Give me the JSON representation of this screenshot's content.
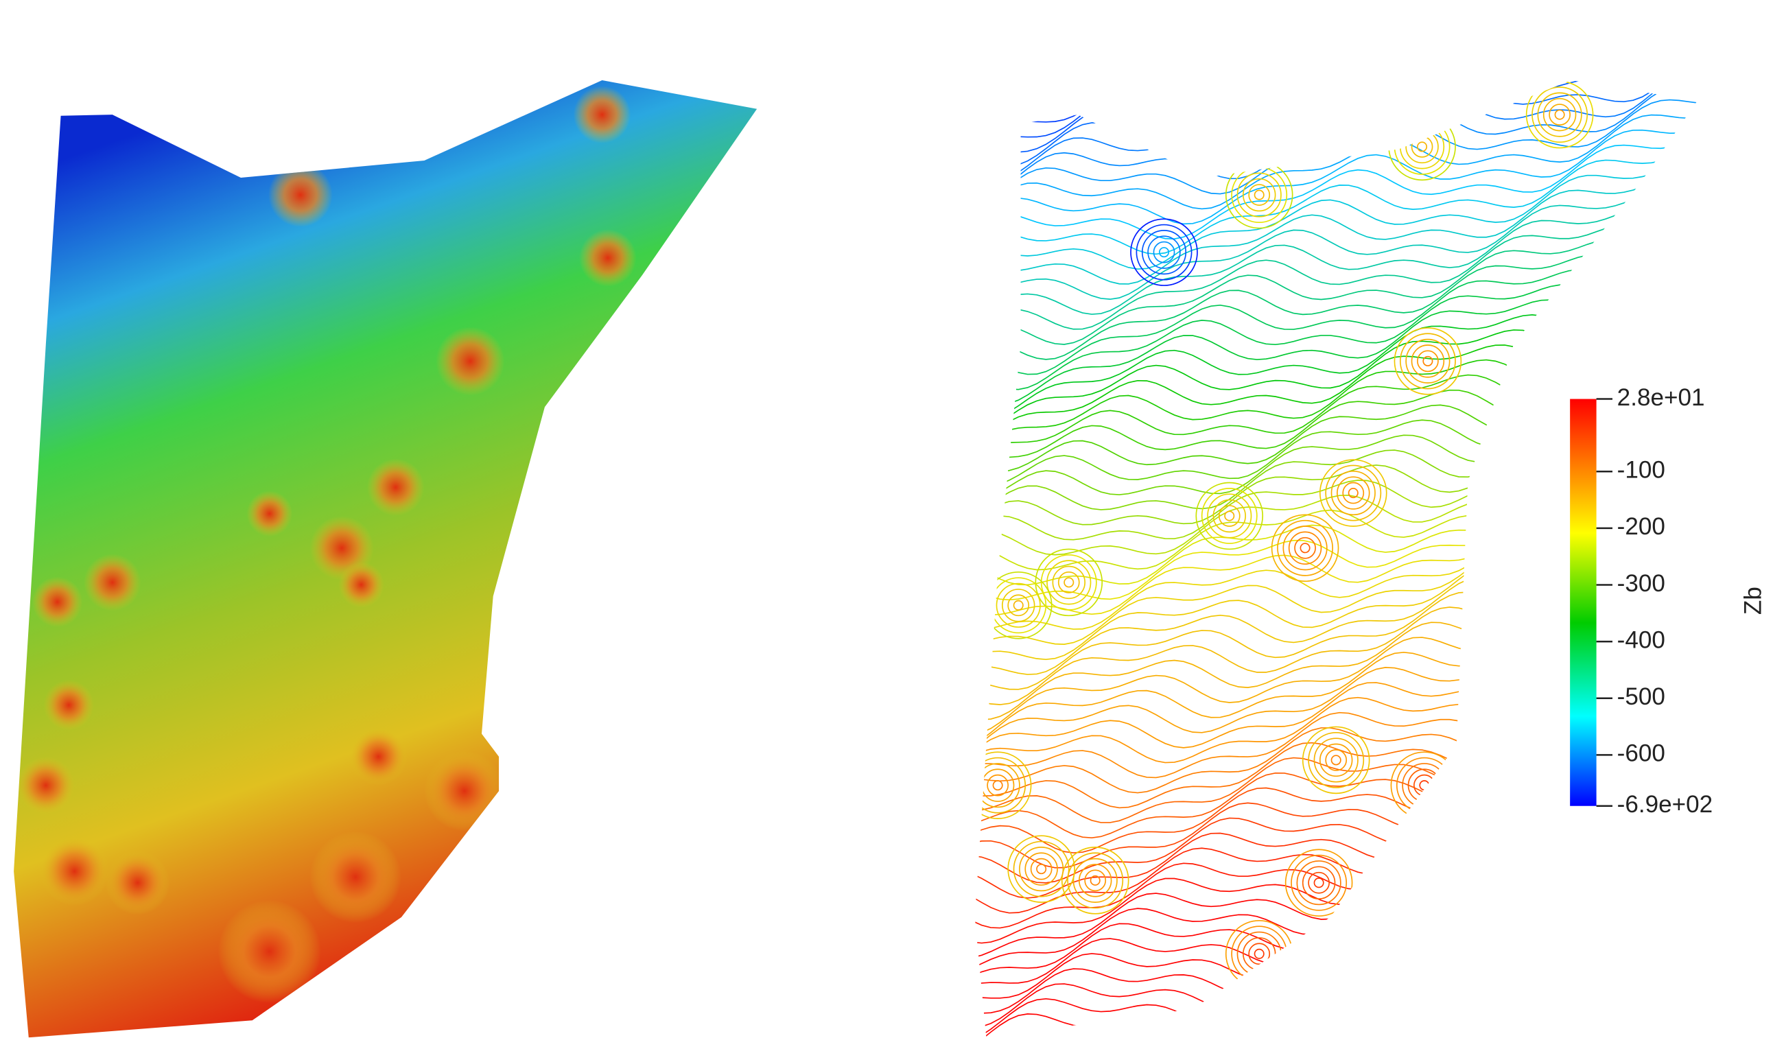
{
  "colorbar": {
    "title": "Zb",
    "range": [
      -690,
      28
    ],
    "ticks": [
      {
        "value": 28,
        "label": "2.8e+01"
      },
      -100,
      -200,
      -300,
      -400,
      -500,
      -600,
      {
        "value": -690,
        "label": "-6.9e+02"
      }
    ]
  }
}
